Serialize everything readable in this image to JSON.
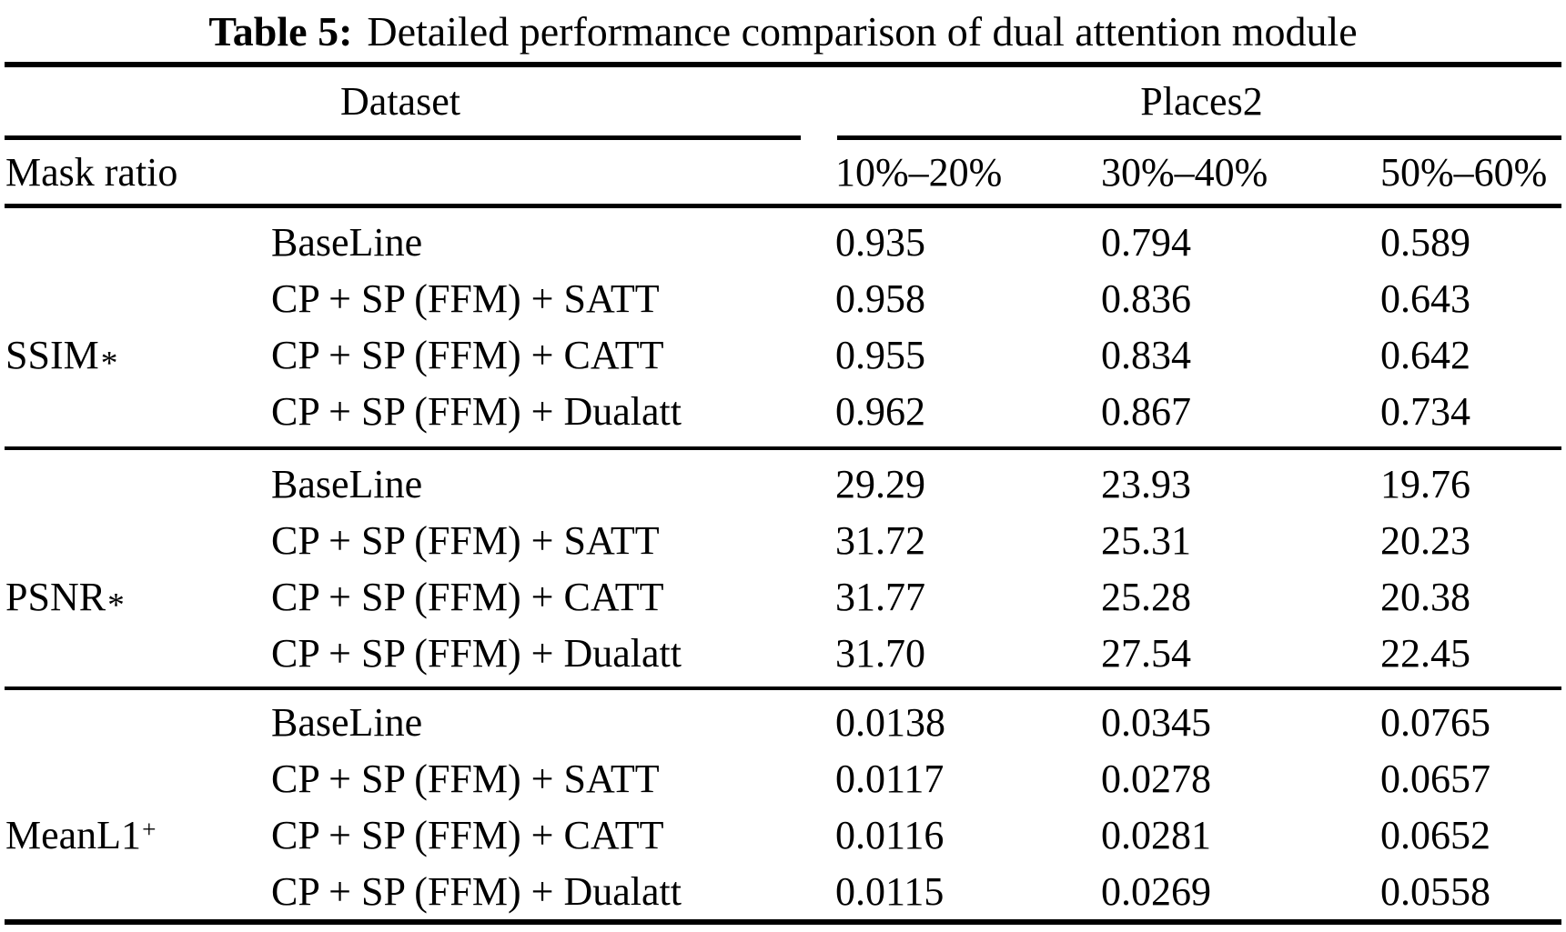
{
  "table": {
    "title_label": "Table 5:",
    "title_text": "Detailed performance comparison of dual attention module",
    "header": {
      "dataset_label": "Dataset",
      "dataset_value": "Places2",
      "row_label": "Mask ratio",
      "mask_ratios": [
        "10%–20%",
        "30%–40%",
        "50%–60%"
      ]
    },
    "groups": [
      {
        "metric": "SSIM",
        "metric_suffix": "*",
        "rows": [
          {
            "method": "BaseLine",
            "values": [
              "0.935",
              "0.794",
              "0.589"
            ]
          },
          {
            "method": "CP + SP (FFM) + SATT",
            "values": [
              "0.958",
              "0.836",
              "0.643"
            ]
          },
          {
            "method": "CP + SP (FFM) + CATT",
            "values": [
              "0.955",
              "0.834",
              "0.642"
            ]
          },
          {
            "method": "CP + SP (FFM) + Dualatt",
            "values": [
              "0.962",
              "0.867",
              "0.734"
            ]
          }
        ]
      },
      {
        "metric": "PSNR",
        "metric_suffix": "*",
        "rows": [
          {
            "method": "BaseLine",
            "values": [
              "29.29",
              "23.93",
              "19.76"
            ]
          },
          {
            "method": "CP + SP (FFM) + SATT",
            "values": [
              "31.72",
              "25.31",
              "20.23"
            ]
          },
          {
            "method": "CP + SP (FFM) + CATT",
            "values": [
              "31.77",
              "25.28",
              "20.38"
            ]
          },
          {
            "method": "CP + SP (FFM) + Dualatt",
            "values": [
              "31.70",
              "27.54",
              "22.45"
            ]
          }
        ]
      },
      {
        "metric": "MeanL1",
        "metric_suffix": "+",
        "rows": [
          {
            "method": "BaseLine",
            "values": [
              "0.0138",
              "0.0345",
              "0.0765"
            ]
          },
          {
            "method": "CP + SP (FFM) + SATT",
            "values": [
              "0.0117",
              "0.0278",
              "0.0657"
            ]
          },
          {
            "method": "CP + SP (FFM) + CATT",
            "values": [
              "0.0116",
              "0.0281",
              "0.0652"
            ]
          },
          {
            "method": "CP + SP (FFM) + Dualatt",
            "values": [
              "0.0115",
              "0.0269",
              "0.0558"
            ]
          }
        ]
      }
    ],
    "colors": {
      "text": "#000000",
      "rule": "#000000",
      "background": "#ffffff"
    }
  }
}
